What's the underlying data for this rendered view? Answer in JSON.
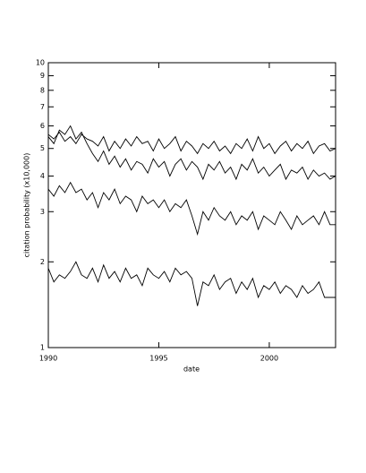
{
  "chart_data": {
    "type": "line",
    "xlabel": "date",
    "ylabel": "citation probability (x10,000)",
    "yscale": "log",
    "xlim": [
      1990,
      2003
    ],
    "xticks": [
      1990,
      1995,
      2000
    ],
    "ylim": [
      1,
      10
    ],
    "yticks": [
      1,
      2,
      3,
      4,
      5,
      6,
      7,
      8,
      9,
      10
    ],
    "x": [
      1990,
      1990.25,
      1990.5,
      1990.75,
      1991,
      1991.25,
      1991.5,
      1991.75,
      1992,
      1992.25,
      1992.5,
      1992.75,
      1993,
      1993.25,
      1993.5,
      1993.75,
      1994,
      1994.25,
      1994.5,
      1994.75,
      1995,
      1995.25,
      1995.5,
      1995.75,
      1996,
      1996.25,
      1996.5,
      1996.75,
      1997,
      1997.25,
      1997.5,
      1997.75,
      1998,
      1998.25,
      1998.5,
      1998.75,
      1999,
      1999.25,
      1999.5,
      1999.75,
      2000,
      2000.25,
      2000.5,
      2000.75,
      2001,
      2001.25,
      2001.5,
      2001.75,
      2002,
      2002.25,
      2002.5,
      2002.75,
      2003
    ],
    "series": [
      {
        "color": "#000000",
        "values": [
          5.6,
          5.4,
          5.7,
          5.3,
          5.5,
          5.2,
          5.6,
          5.4,
          5.3,
          5.1,
          5.5,
          4.9,
          5.3,
          5.0,
          5.4,
          5.1,
          5.5,
          5.2,
          5.3,
          4.9,
          5.4,
          5.0,
          5.2,
          5.5,
          4.9,
          5.3,
          5.1,
          4.8,
          5.2,
          5.0,
          5.3,
          4.9,
          5.1,
          4.8,
          5.2,
          5.0,
          5.4,
          4.9,
          5.5,
          5.0,
          5.2,
          4.8,
          5.1,
          5.3,
          4.9,
          5.2,
          5.0,
          5.3,
          4.8,
          5.1,
          5.2,
          4.9,
          5.0
        ]
      },
      {
        "color": "#000000",
        "values": [
          5.5,
          5.2,
          5.8,
          5.6,
          6.0,
          5.4,
          5.7,
          5.2,
          4.8,
          4.5,
          4.9,
          4.4,
          4.7,
          4.3,
          4.6,
          4.2,
          4.5,
          4.4,
          4.1,
          4.6,
          4.3,
          4.5,
          4.0,
          4.4,
          4.6,
          4.2,
          4.5,
          4.3,
          3.9,
          4.4,
          4.2,
          4.5,
          4.1,
          4.3,
          3.9,
          4.4,
          4.2,
          4.6,
          4.1,
          4.3,
          4.0,
          4.2,
          4.4,
          3.9,
          4.2,
          4.1,
          4.3,
          3.9,
          4.2,
          4.0,
          4.1,
          3.9,
          4.0
        ]
      },
      {
        "color": "#000000",
        "values": [
          3.6,
          3.4,
          3.7,
          3.5,
          3.8,
          3.5,
          3.6,
          3.3,
          3.5,
          3.1,
          3.5,
          3.3,
          3.6,
          3.2,
          3.4,
          3.3,
          3.0,
          3.4,
          3.2,
          3.3,
          3.1,
          3.3,
          3.0,
          3.2,
          3.1,
          3.3,
          2.9,
          2.5,
          3.0,
          2.8,
          3.1,
          2.9,
          2.8,
          3.0,
          2.7,
          2.9,
          2.8,
          3.0,
          2.6,
          2.9,
          2.8,
          2.7,
          3.0,
          2.8,
          2.6,
          2.9,
          2.7,
          2.8,
          2.9,
          2.7,
          3.0,
          2.7,
          2.7
        ]
      },
      {
        "color": "#000000",
        "values": [
          1.9,
          1.7,
          1.8,
          1.75,
          1.85,
          2.0,
          1.8,
          1.75,
          1.9,
          1.7,
          1.95,
          1.75,
          1.85,
          1.7,
          1.9,
          1.75,
          1.8,
          1.65,
          1.9,
          1.8,
          1.75,
          1.85,
          1.7,
          1.9,
          1.8,
          1.85,
          1.75,
          1.4,
          1.7,
          1.65,
          1.8,
          1.6,
          1.7,
          1.75,
          1.55,
          1.7,
          1.6,
          1.75,
          1.5,
          1.65,
          1.6,
          1.7,
          1.55,
          1.65,
          1.6,
          1.5,
          1.65,
          1.55,
          1.6,
          1.7,
          1.5,
          1.5,
          1.5
        ]
      }
    ]
  }
}
